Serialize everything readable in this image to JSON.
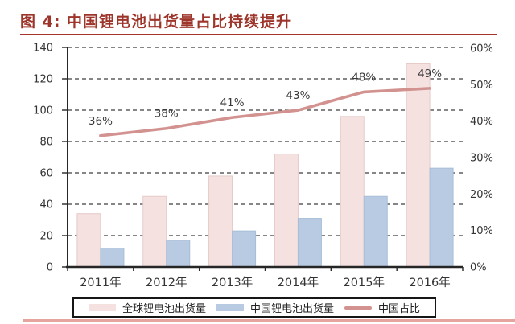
{
  "title": {
    "text": "图 4: 中国锂电池出货量占比持续提升"
  },
  "chart_data": {
    "type": "bar",
    "subtype": "grouped bars with secondary-axis line",
    "categories": [
      "2011年",
      "2012年",
      "2013年",
      "2014年",
      "2015年",
      "2016年"
    ],
    "series": [
      {
        "name": "全球锂电池出货量",
        "type": "bar",
        "axis": "left",
        "values": [
          34,
          45,
          58,
          72,
          96,
          130
        ],
        "color": "#f4e1e0",
        "edge": "#e6cbc9"
      },
      {
        "name": "中国锂电池出货量",
        "type": "bar",
        "axis": "left",
        "values": [
          12,
          17,
          23,
          31,
          45,
          63
        ],
        "color": "#b8cbe2",
        "edge": "#a8bed8"
      },
      {
        "name": "中国占比",
        "type": "line",
        "axis": "right",
        "values": [
          36,
          38,
          41,
          43,
          48,
          49
        ],
        "point_labels": [
          "36%",
          "38%",
          "41%",
          "43%",
          "48%",
          "49%"
        ],
        "color": "#d29290"
      }
    ],
    "left_axis": {
      "min": 0,
      "max": 140,
      "step": 20,
      "ticks": [
        "0",
        "20",
        "40",
        "60",
        "80",
        "100",
        "120",
        "140"
      ]
    },
    "right_axis": {
      "min": 0,
      "max": 60,
      "step": 10,
      "ticks": [
        "0%",
        "10%",
        "20%",
        "30%",
        "40%",
        "50%",
        "60%"
      ]
    },
    "grid": {
      "horizontal": true,
      "style": "dashed",
      "color": "#3f3f3f"
    },
    "axis_color": "#262626",
    "tick_text_color": "#333333",
    "label_text_color": "#3a3a3a",
    "legend_position": "bottom"
  },
  "legend": {
    "items": [
      {
        "label": "全球锂电池出货量",
        "swatch": "bar",
        "color": "#f4e1e0"
      },
      {
        "label": "中国锂电池出货量",
        "swatch": "bar",
        "color": "#b8cbe2"
      },
      {
        "label": "中国占比",
        "swatch": "line",
        "color": "#d29290"
      }
    ]
  }
}
